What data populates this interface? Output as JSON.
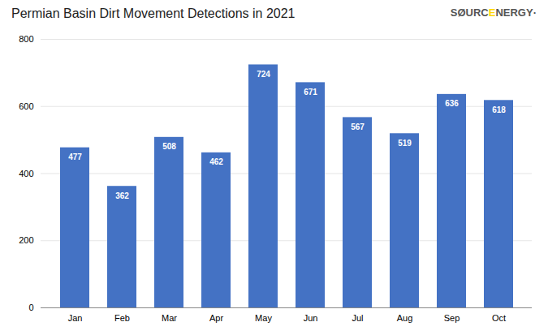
{
  "chart_data": {
    "type": "bar",
    "title": "Permian Basin Dirt Movement Detections in 2021",
    "categories": [
      "Jan",
      "Feb",
      "Mar",
      "Apr",
      "May",
      "Jun",
      "Jul",
      "Aug",
      "Sep",
      "Oct"
    ],
    "values": [
      477,
      362,
      508,
      462,
      724,
      671,
      567,
      519,
      636,
      618
    ],
    "color": "#4472C4",
    "ylim": [
      0,
      800
    ],
    "yticks": [
      0,
      200,
      400,
      600,
      800
    ],
    "grid": true,
    "data_labels": true,
    "annotations": [
      {
        "text": "SØURC",
        "color": "#555555"
      },
      {
        "text": "E",
        "color": "#FFD700"
      },
      {
        "text": "NERGY",
        "color": "#555555"
      },
      {
        "text": "·",
        "color": "#555555"
      }
    ]
  }
}
